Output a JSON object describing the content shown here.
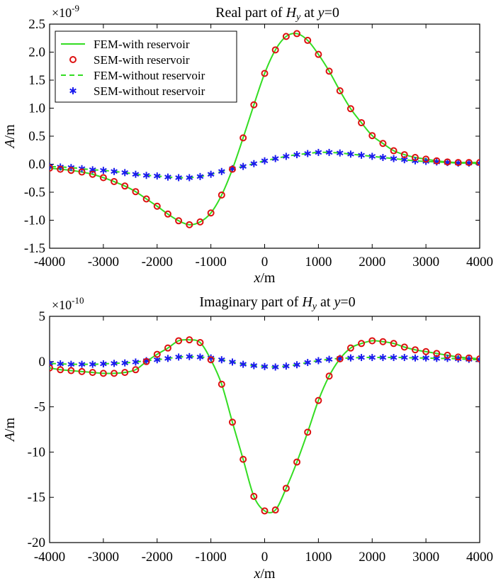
{
  "chart_data": [
    {
      "type": "line",
      "title_pre": "Real part of ",
      "title_var": "H",
      "title_sub": "y",
      "title_mid": " at ",
      "title_y": "y",
      "title_post": "=0",
      "xlabel_var": "x",
      "xlabel_unit": "/m",
      "ylabel_var": "A",
      "ylabel_unit": "/m",
      "exponent_base": "×10",
      "exponent": "-9",
      "xlim": [
        -4000,
        4000
      ],
      "ylim": [
        -1.5,
        2.5
      ],
      "xticks": [
        -4000,
        -3000,
        -2000,
        -1000,
        0,
        1000,
        2000,
        3000,
        4000
      ],
      "yticks": [
        2.5,
        2.0,
        1.5,
        1.0,
        0.5,
        0.0,
        -0.5,
        -1.0,
        -1.5
      ],
      "ytick_labels": [
        "2.5",
        "2.0",
        "1.5",
        "1.0",
        "0.5",
        "0.0",
        "-0.5",
        "-1.0",
        "-1.5"
      ],
      "xtick_labels": [
        "-4000",
        "-3000",
        "-2000",
        "-1000",
        "0",
        "1000",
        "2000",
        "3000",
        "4000"
      ],
      "legend_position": "top-left",
      "legend": [
        "FEM-with reservoir",
        "SEM-with reservoir",
        "FEM-without reservoir",
        "SEM-without reservoir"
      ],
      "colors": {
        "fem_with": "#33dd22",
        "sem_with": "#dd1111",
        "fem_without": "#33dd22",
        "sem_without": "#1a1aee"
      },
      "series": [
        {
          "name": "SEM-with reservoir",
          "x": [
            -4000,
            -3800,
            -3600,
            -3400,
            -3200,
            -3000,
            -2800,
            -2600,
            -2400,
            -2200,
            -2000,
            -1800,
            -1600,
            -1400,
            -1200,
            -1000,
            -800,
            -600,
            -400,
            -200,
            0,
            200,
            400,
            600,
            800,
            1000,
            1200,
            1400,
            1600,
            1800,
            2000,
            2200,
            2400,
            2600,
            2800,
            3000,
            3200,
            3400,
            3600,
            3800,
            4000
          ],
          "y": [
            -0.07,
            -0.09,
            -0.11,
            -0.14,
            -0.18,
            -0.24,
            -0.31,
            -0.39,
            -0.49,
            -0.62,
            -0.75,
            -0.89,
            -1.01,
            -1.08,
            -1.03,
            -0.87,
            -0.55,
            -0.09,
            0.47,
            1.06,
            1.62,
            2.04,
            2.28,
            2.33,
            2.21,
            1.96,
            1.66,
            1.31,
            0.99,
            0.74,
            0.51,
            0.37,
            0.24,
            0.17,
            0.12,
            0.09,
            0.06,
            0.04,
            0.03,
            0.03,
            0.03
          ]
        },
        {
          "name": "SEM-without reservoir",
          "x": [
            -4000,
            -3800,
            -3600,
            -3400,
            -3200,
            -3000,
            -2800,
            -2600,
            -2400,
            -2200,
            -2000,
            -1800,
            -1600,
            -1400,
            -1200,
            -1000,
            -800,
            -600,
            -400,
            -200,
            0,
            200,
            400,
            600,
            800,
            1000,
            1200,
            1400,
            1600,
            1800,
            2000,
            2200,
            2400,
            2600,
            2800,
            3000,
            3200,
            3400,
            3600,
            3800,
            4000
          ],
          "y": [
            -0.04,
            -0.05,
            -0.06,
            -0.08,
            -0.1,
            -0.11,
            -0.13,
            -0.15,
            -0.18,
            -0.2,
            -0.21,
            -0.23,
            -0.24,
            -0.24,
            -0.22,
            -0.18,
            -0.13,
            -0.08,
            -0.04,
            0.01,
            0.06,
            0.1,
            0.14,
            0.17,
            0.19,
            0.21,
            0.21,
            0.2,
            0.18,
            0.16,
            0.14,
            0.12,
            0.1,
            0.08,
            0.06,
            0.05,
            0.04,
            0.03,
            0.02,
            0.02,
            0.01
          ]
        }
      ]
    },
    {
      "type": "line",
      "title_pre": "Imaginary part of ",
      "title_var": "H",
      "title_sub": "y",
      "title_mid": " at ",
      "title_y": "y",
      "title_post": "=0",
      "xlabel_var": "x",
      "xlabel_unit": "/m",
      "ylabel_var": "A",
      "ylabel_unit": "/m",
      "exponent_base": "×10",
      "exponent": "-10",
      "xlim": [
        -4000,
        4000
      ],
      "ylim": [
        -20,
        5
      ],
      "xticks": [
        -4000,
        -3000,
        -2000,
        -1000,
        0,
        1000,
        2000,
        3000,
        4000
      ],
      "yticks": [
        5,
        0,
        -5,
        -10,
        -15,
        -20
      ],
      "ytick_labels": [
        "5",
        "0",
        "-5",
        "-10",
        "-15",
        "-20"
      ],
      "xtick_labels": [
        "-4000",
        "-3000",
        "-2000",
        "-1000",
        "0",
        "1000",
        "2000",
        "3000",
        "4000"
      ],
      "legend_position": "none",
      "colors": {
        "fem_with": "#33dd22",
        "sem_with": "#dd1111",
        "fem_without": "#33dd22",
        "sem_without": "#1a1aee"
      },
      "series": [
        {
          "name": "SEM-with reservoir",
          "x": [
            -4000,
            -3800,
            -3600,
            -3400,
            -3200,
            -3000,
            -2800,
            -2600,
            -2400,
            -2200,
            -2000,
            -1800,
            -1600,
            -1400,
            -1200,
            -1000,
            -800,
            -600,
            -400,
            -200,
            0,
            200,
            400,
            600,
            800,
            1000,
            1200,
            1400,
            1600,
            1800,
            2000,
            2200,
            2400,
            2600,
            2800,
            3000,
            3200,
            3400,
            3600,
            3800,
            4000
          ],
          "y": [
            -0.7,
            -0.9,
            -1.0,
            -1.1,
            -1.2,
            -1.3,
            -1.3,
            -1.2,
            -0.9,
            0.0,
            0.8,
            1.5,
            2.3,
            2.4,
            2.1,
            0.2,
            -2.5,
            -6.7,
            -10.8,
            -14.9,
            -16.5,
            -16.4,
            -14.0,
            -11.1,
            -7.8,
            -4.3,
            -1.6,
            0.3,
            1.5,
            2.0,
            2.3,
            2.2,
            2.0,
            1.6,
            1.3,
            1.1,
            0.9,
            0.7,
            0.5,
            0.4,
            0.3
          ]
        },
        {
          "name": "SEM-without reservoir",
          "x": [
            -4000,
            -3800,
            -3600,
            -3400,
            -3200,
            -3000,
            -2800,
            -2600,
            -2400,
            -2200,
            -2000,
            -1800,
            -1600,
            -1400,
            -1200,
            -1000,
            -800,
            -600,
            -400,
            -200,
            0,
            200,
            400,
            600,
            800,
            1000,
            1200,
            1400,
            1600,
            1800,
            2000,
            2200,
            2400,
            2600,
            2800,
            3000,
            3200,
            3400,
            3600,
            3800,
            4000
          ],
          "y": [
            -0.2,
            -0.25,
            -0.3,
            -0.3,
            -0.3,
            -0.25,
            -0.2,
            -0.15,
            -0.05,
            0.1,
            0.2,
            0.35,
            0.5,
            0.55,
            0.5,
            0.4,
            0.2,
            -0.05,
            -0.3,
            -0.45,
            -0.55,
            -0.6,
            -0.5,
            -0.35,
            -0.1,
            0.1,
            0.25,
            0.35,
            0.4,
            0.45,
            0.45,
            0.45,
            0.45,
            0.45,
            0.4,
            0.4,
            0.35,
            0.35,
            0.3,
            0.25,
            0.2
          ]
        }
      ]
    }
  ]
}
